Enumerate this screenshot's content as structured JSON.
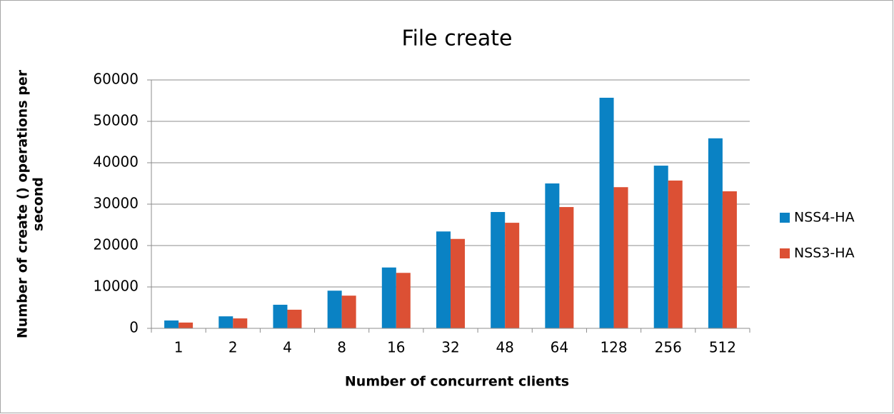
{
  "chart_data": {
    "type": "bar",
    "title": "File create",
    "x_label": "Number of concurrent clients",
    "y_label": [
      "Number of create () operations per",
      "second"
    ],
    "categories": [
      "1",
      "2",
      "4",
      "8",
      "16",
      "32",
      "48",
      "64",
      "128",
      "256",
      "512"
    ],
    "series": [
      {
        "name": "NSS4-HA",
        "color": "#0a82c4",
        "values": [
          1900,
          2900,
          5700,
          9100,
          14700,
          23400,
          28100,
          35000,
          55700,
          39300,
          45900
        ]
      },
      {
        "name": "NSS3-HA",
        "color": "#dc5034",
        "values": [
          1400,
          2400,
          4500,
          7900,
          13400,
          21600,
          25500,
          29300,
          34100,
          35700,
          33100
        ]
      }
    ],
    "ylim": [
      0,
      60000
    ],
    "yticks": [
      0,
      10000,
      20000,
      30000,
      40000,
      50000,
      60000
    ],
    "grid": true,
    "legend": "right"
  }
}
